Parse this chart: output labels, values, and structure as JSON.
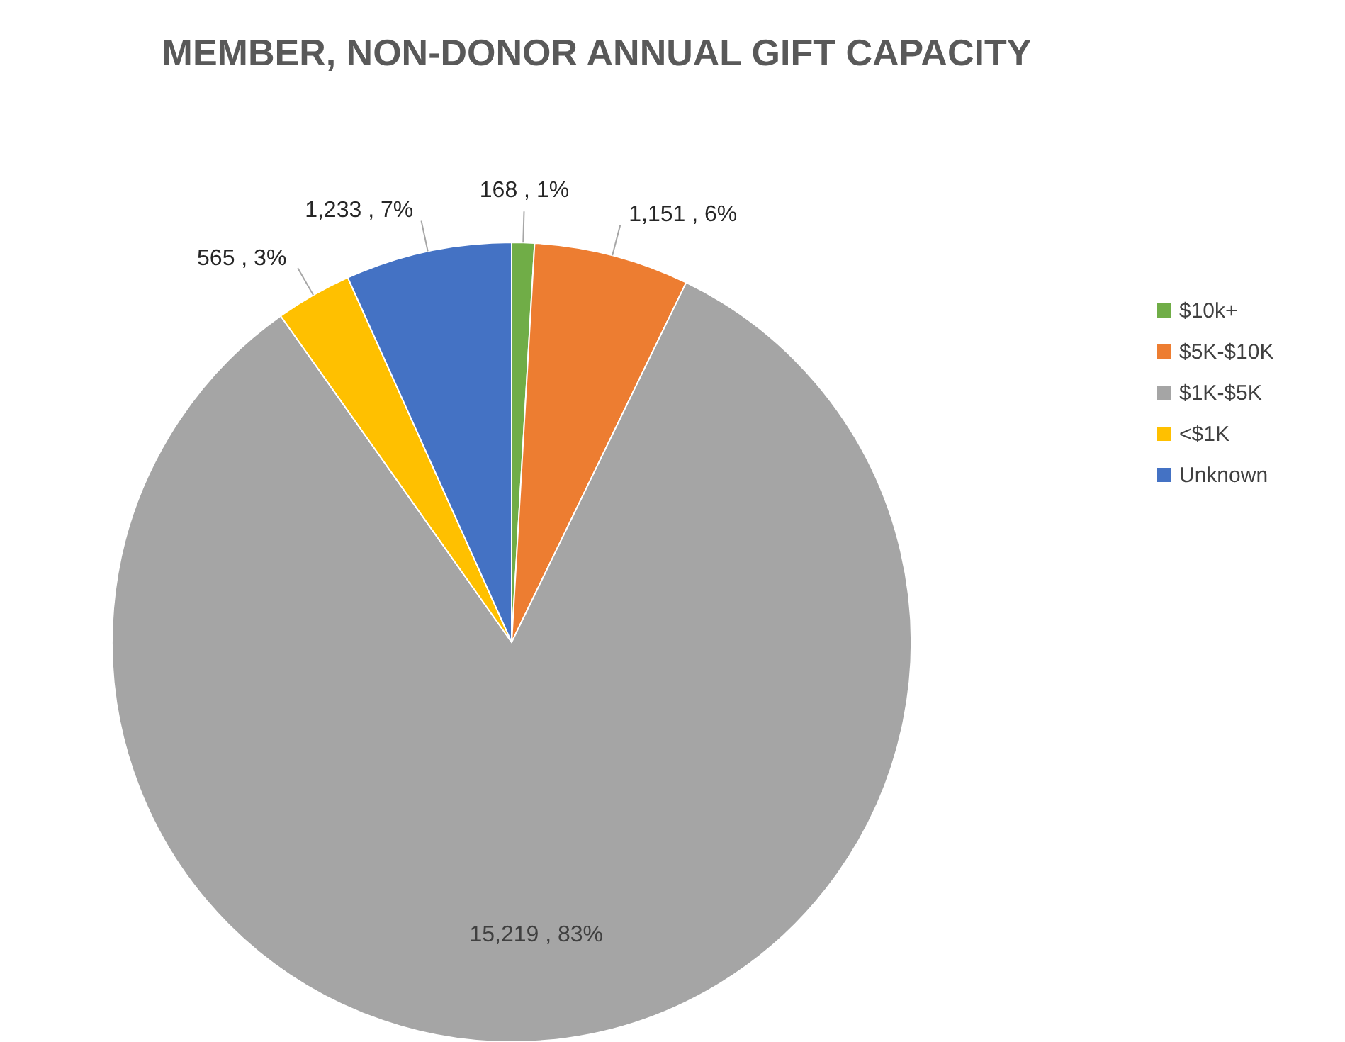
{
  "chart_data": {
    "type": "pie",
    "title": "MEMBER, NON-DONOR ANNUAL GIFT CAPACITY",
    "categories": [
      "$10k+",
      "$5K-$10K",
      "$1K-$5K",
      "<$1K",
      "Unknown"
    ],
    "values": [
      168,
      1151,
      15219,
      565,
      1233
    ],
    "colors": [
      "#70ad47",
      "#ed7d31",
      "#a5a5a5",
      "#ffc000",
      "#4472c4"
    ],
    "value_labels": [
      "168 , 1%",
      "1,151 , 6%",
      "15,219 , 83%",
      "565 , 3%",
      "1,233 , 7%"
    ],
    "legend": "right"
  }
}
